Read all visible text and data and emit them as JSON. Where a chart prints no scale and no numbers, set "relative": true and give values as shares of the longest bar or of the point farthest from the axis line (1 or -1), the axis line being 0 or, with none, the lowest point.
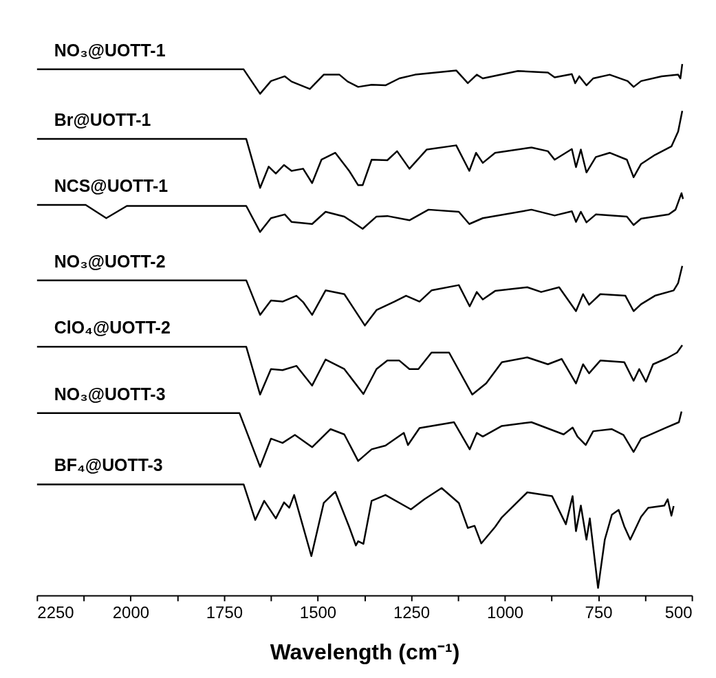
{
  "chart_data": {
    "type": "line",
    "relative": true,
    "xlabel": "Wavelength (cm⁻¹)",
    "xlim": [
      2250,
      500
    ],
    "xticks": [
      2250,
      {
        "value": 2125,
        "label": null
      },
      2000,
      {
        "value": 1875,
        "label": null
      },
      1750,
      {
        "value": 1625,
        "label": null
      },
      1500,
      {
        "value": 1375,
        "label": null
      },
      1250,
      {
        "value": 1125,
        "label": null
      },
      1000,
      {
        "value": 875,
        "label": null
      },
      750,
      {
        "value": 625,
        "label": null
      },
      500
    ],
    "tick_labels": "x",
    "grid": false,
    "legend": false,
    "marker": "none",
    "line_style": "solid",
    "series": [
      {
        "name": "NO₃@UOTT-1",
        "color": "#000000",
        "x": [
          2250,
          1698,
          1654,
          1625,
          1588,
          1570,
          1521,
          1484,
          1442,
          1420,
          1392,
          1356,
          1319,
          1282,
          1240,
          1130,
          1099,
          1075,
          1059,
          965,
          885,
          867,
          821,
          812,
          801,
          782,
          764,
          720,
          672,
          656,
          636,
          581,
          537,
          531,
          526
        ],
        "values": [
          0.99,
          0.99,
          0.944,
          0.968,
          0.977,
          0.967,
          0.953,
          0.98,
          0.98,
          0.967,
          0.957,
          0.961,
          0.96,
          0.973,
          0.98,
          0.988,
          0.964,
          0.98,
          0.973,
          0.987,
          0.984,
          0.975,
          0.981,
          0.964,
          0.977,
          0.96,
          0.973,
          0.98,
          0.968,
          0.957,
          0.968,
          0.977,
          0.98,
          0.973,
          1.0
        ]
      },
      {
        "name": "Br@UOTT-1",
        "color": "#000000",
        "x": [
          2250,
          1691,
          1654,
          1631,
          1612,
          1590,
          1570,
          1539,
          1515,
          1490,
          1453,
          1416,
          1392,
          1380,
          1356,
          1314,
          1288,
          1255,
          1209,
          1130,
          1095,
          1077,
          1059,
          1026,
          929,
          885,
          867,
          821,
          810,
          797,
          782,
          757,
          720,
          674,
          656,
          636,
          599,
          555,
          537,
          526
        ],
        "values": [
          0.859,
          0.859,
          0.767,
          0.807,
          0.794,
          0.81,
          0.799,
          0.803,
          0.776,
          0.82,
          0.833,
          0.799,
          0.772,
          0.772,
          0.82,
          0.819,
          0.836,
          0.803,
          0.839,
          0.847,
          0.799,
          0.833,
          0.814,
          0.833,
          0.843,
          0.836,
          0.82,
          0.84,
          0.806,
          0.839,
          0.796,
          0.825,
          0.833,
          0.82,
          0.787,
          0.812,
          0.829,
          0.845,
          0.873,
          0.912
        ]
      },
      {
        "name": "NCS@UOTT-1",
        "color": "#000000",
        "x": [
          2250,
          2120,
          2065,
          2010,
          1691,
          1654,
          1625,
          1588,
          1570,
          1515,
          1479,
          1429,
          1380,
          1343,
          1314,
          1255,
          1204,
          1123,
          1095,
          1059,
          929,
          867,
          821,
          810,
          797,
          782,
          757,
          674,
          656,
          636,
          562,
          544,
          528,
          524
        ],
        "values": [
          0.735,
          0.735,
          0.71,
          0.733,
          0.733,
          0.684,
          0.71,
          0.717,
          0.703,
          0.699,
          0.722,
          0.713,
          0.69,
          0.713,
          0.714,
          0.706,
          0.726,
          0.722,
          0.699,
          0.71,
          0.726,
          0.715,
          0.723,
          0.703,
          0.722,
          0.702,
          0.717,
          0.713,
          0.697,
          0.709,
          0.717,
          0.726,
          0.757,
          0.746
        ]
      },
      {
        "name": "NO₃@UOTT-2",
        "color": "#000000",
        "x": [
          2250,
          1691,
          1654,
          1625,
          1594,
          1557,
          1539,
          1515,
          1479,
          1429,
          1374,
          1343,
          1295,
          1264,
          1228,
          1196,
          1123,
          1094,
          1075,
          1059,
          1026,
          940,
          903,
          855,
          810,
          791,
          775,
          745,
          678,
          656,
          636,
          599,
          549,
          537,
          526
        ],
        "values": [
          0.593,
          0.593,
          0.528,
          0.555,
          0.553,
          0.564,
          0.552,
          0.528,
          0.574,
          0.567,
          0.508,
          0.537,
          0.553,
          0.564,
          0.553,
          0.574,
          0.584,
          0.544,
          0.571,
          0.557,
          0.573,
          0.58,
          0.571,
          0.58,
          0.535,
          0.567,
          0.547,
          0.567,
          0.564,
          0.535,
          0.548,
          0.564,
          0.574,
          0.588,
          0.62
        ]
      },
      {
        "name": "ClO₄@UOTT-2",
        "color": "#000000",
        "x": [
          2250,
          1691,
          1654,
          1625,
          1594,
          1557,
          1515,
          1479,
          1429,
          1378,
          1343,
          1314,
          1282,
          1255,
          1231,
          1196,
          1149,
          1087,
          1050,
          1008,
          940,
          885,
          848,
          810,
          791,
          775,
          745,
          681,
          656,
          641,
          623,
          604,
          568,
          540,
          526
        ],
        "values": [
          0.468,
          0.468,
          0.378,
          0.426,
          0.424,
          0.432,
          0.395,
          0.444,
          0.426,
          0.379,
          0.426,
          0.442,
          0.442,
          0.426,
          0.426,
          0.457,
          0.457,
          0.378,
          0.399,
          0.439,
          0.448,
          0.435,
          0.445,
          0.399,
          0.435,
          0.418,
          0.442,
          0.439,
          0.404,
          0.426,
          0.402,
          0.435,
          0.446,
          0.457,
          0.471
        ]
      },
      {
        "name": "NO₃@UOTT-3",
        "color": "#000000",
        "x": [
          2250,
          1709,
          1654,
          1625,
          1594,
          1561,
          1515,
          1466,
          1429,
          1392,
          1356,
          1319,
          1270,
          1259,
          1228,
          1136,
          1094,
          1075,
          1059,
          1008,
          929,
          843,
          819,
          806,
          784,
          764,
          714,
          683,
          656,
          636,
          568,
          535,
          528
        ],
        "values": [
          0.343,
          0.343,
          0.242,
          0.295,
          0.287,
          0.302,
          0.279,
          0.313,
          0.303,
          0.253,
          0.275,
          0.282,
          0.306,
          0.283,
          0.315,
          0.326,
          0.275,
          0.306,
          0.299,
          0.319,
          0.326,
          0.303,
          0.316,
          0.299,
          0.283,
          0.309,
          0.313,
          0.302,
          0.27,
          0.295,
          0.316,
          0.326,
          0.346
        ]
      },
      {
        "name": "BF₄@UOTT-3",
        "color": "#000000",
        "x": [
          2250,
          1698,
          1667,
          1643,
          1612,
          1590,
          1576,
          1563,
          1517,
          1484,
          1453,
          1416,
          1398,
          1392,
          1378,
          1356,
          1319,
          1251,
          1215,
          1169,
          1123,
          1099,
          1081,
          1063,
          1026,
          1008,
          940,
          874,
          837,
          819,
          810,
          797,
          782,
          773,
          751,
          733,
          714,
          696,
          681,
          665,
          636,
          617,
          574,
          565,
          555,
          549
        ],
        "values": [
          0.209,
          0.209,
          0.142,
          0.178,
          0.145,
          0.175,
          0.165,
          0.189,
          0.074,
          0.174,
          0.195,
          0.129,
          0.094,
          0.102,
          0.097,
          0.178,
          0.189,
          0.162,
          0.181,
          0.202,
          0.174,
          0.127,
          0.131,
          0.098,
          0.129,
          0.147,
          0.194,
          0.187,
          0.134,
          0.187,
          0.121,
          0.169,
          0.105,
          0.145,
          0.014,
          0.105,
          0.152,
          0.161,
          0.13,
          0.105,
          0.148,
          0.165,
          0.169,
          0.181,
          0.15,
          0.168
        ]
      }
    ]
  }
}
